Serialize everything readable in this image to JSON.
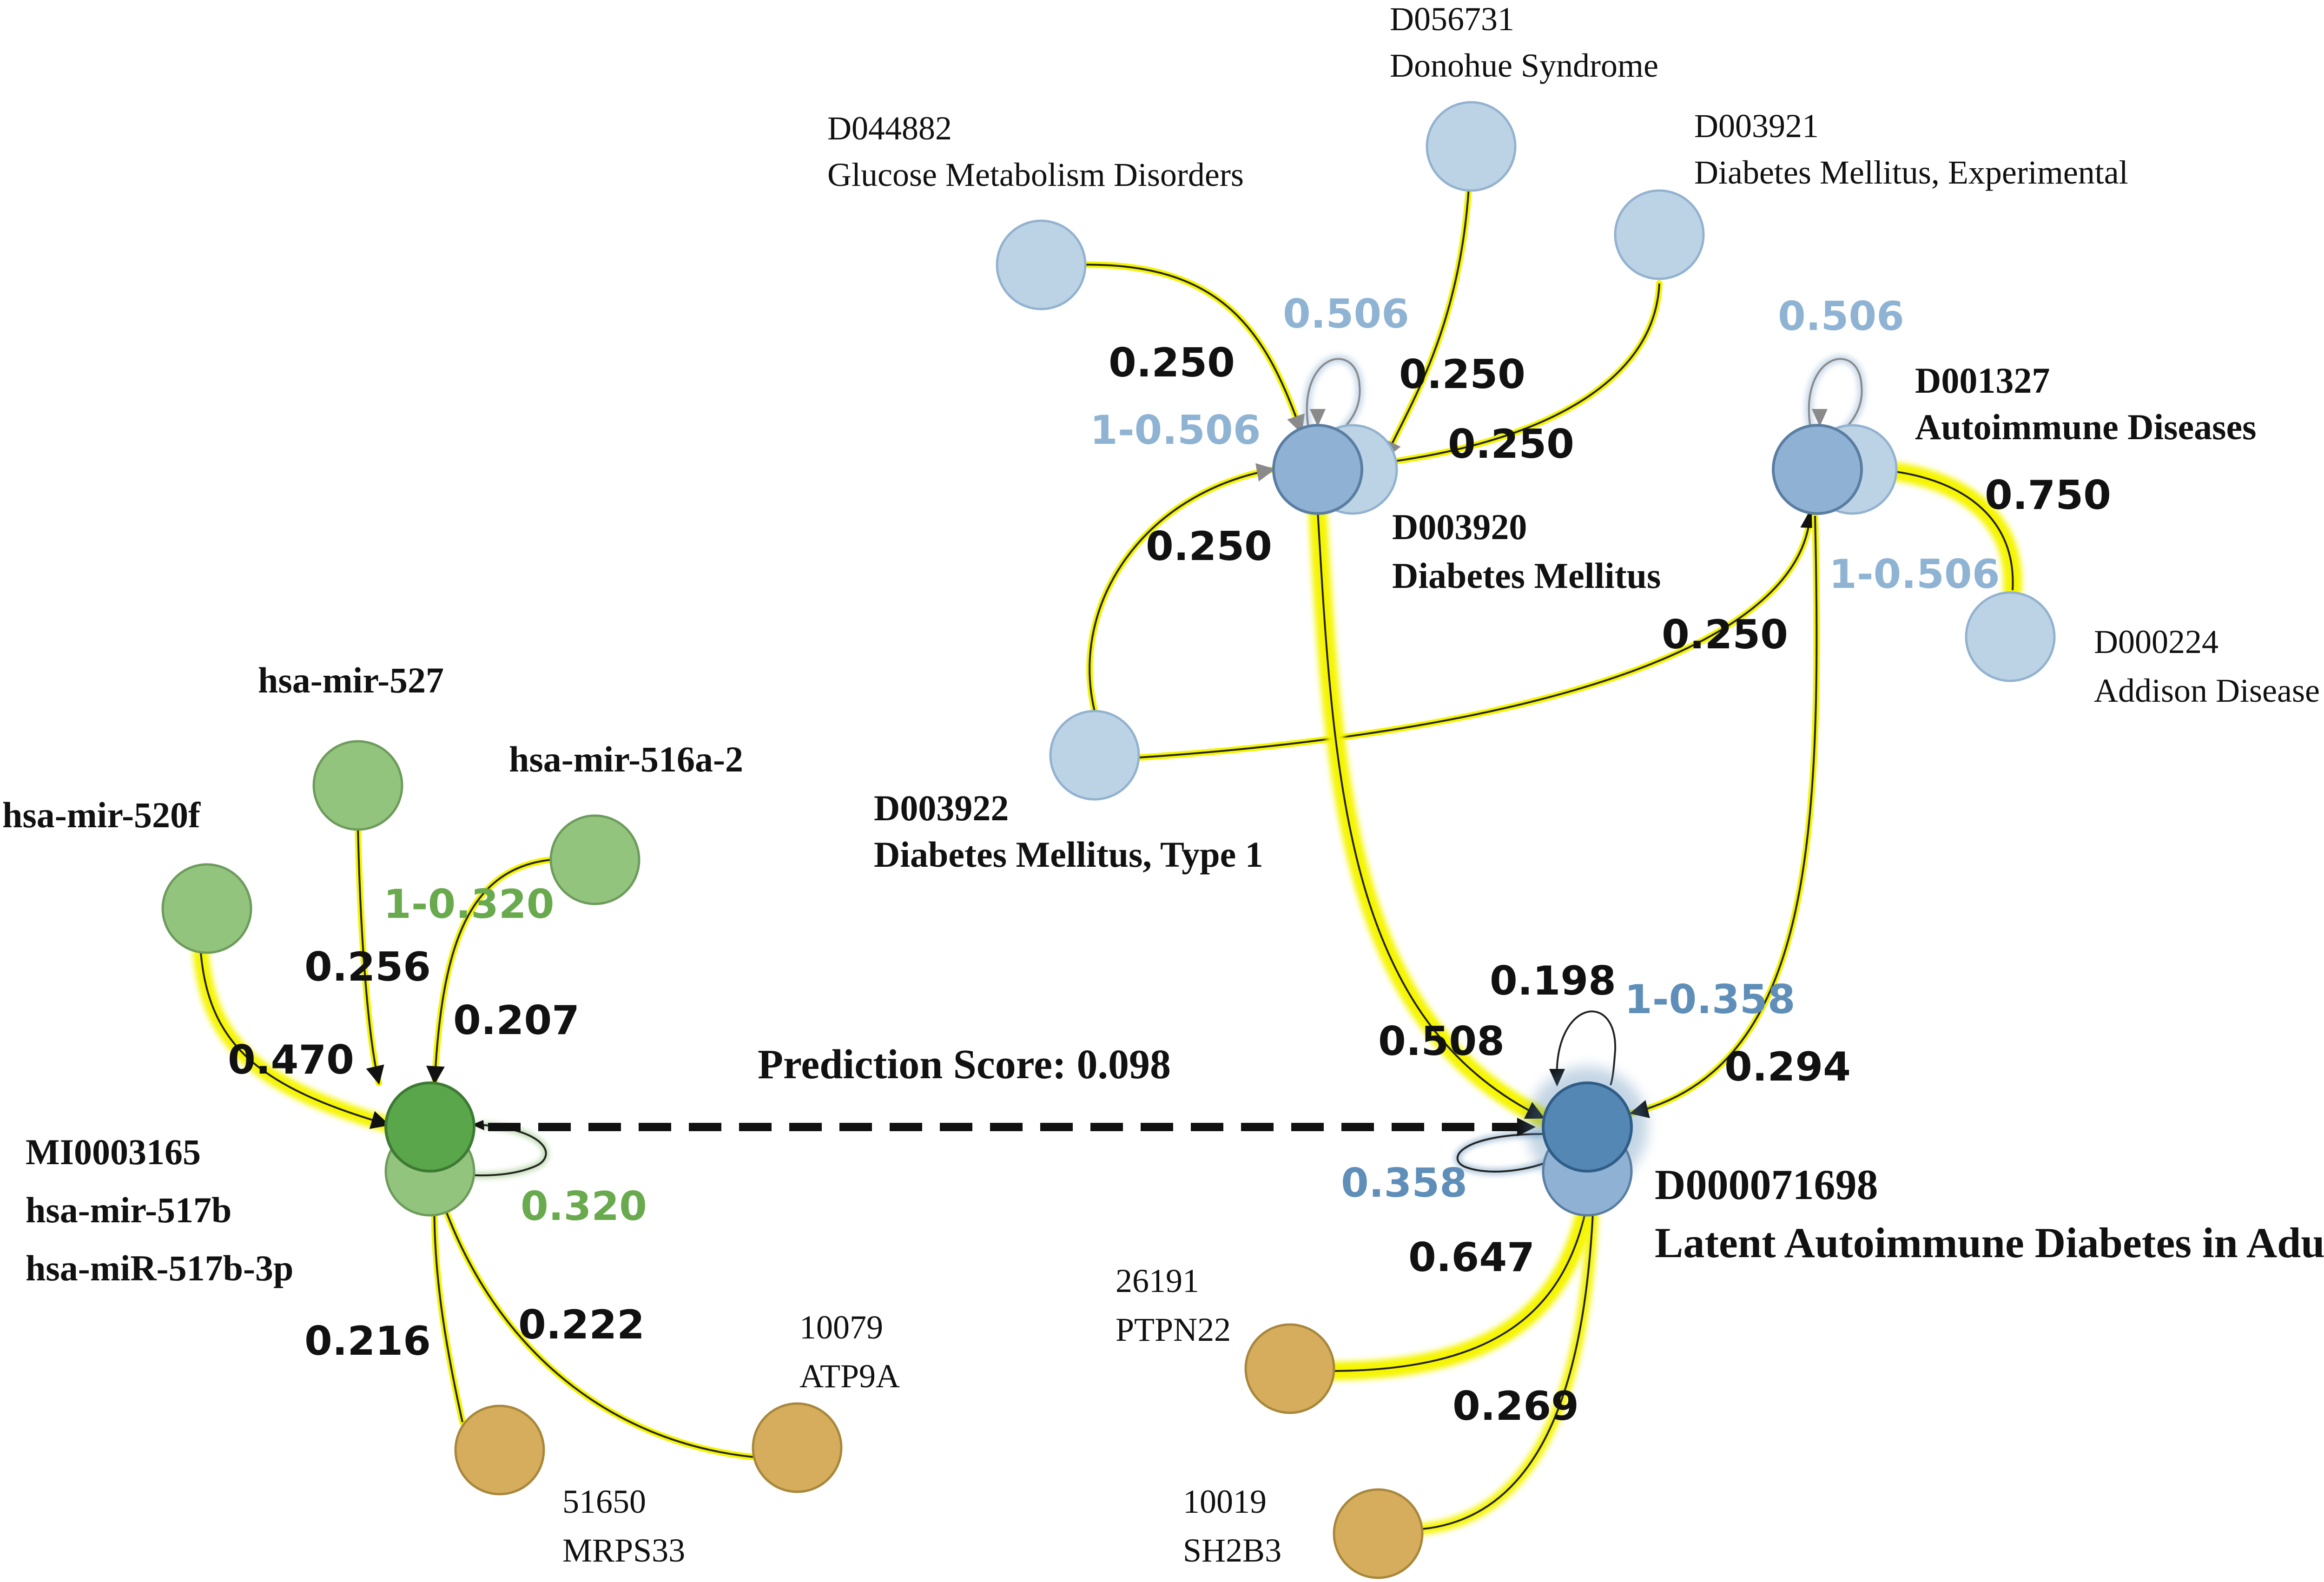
{
  "colors": {
    "mirna_light": "#93c47d",
    "mirna_dark": "#5aa64a",
    "gene": "#d5ad5c",
    "disease_light": "#bcd3e6",
    "disease_mid": "#8fb2d4",
    "disease_dark": "#5587b4",
    "edge_glow": "#f5f500",
    "weight_blue_light": "#8fb3d3",
    "weight_blue_dark": "#5f8fb8",
    "weight_green": "#6aaa4e"
  },
  "nodes": {
    "hsa_mir_527": {
      "label": "hsa-mir-527"
    },
    "hsa_mir_516a_2": {
      "label": "hsa-mir-516a-2"
    },
    "hsa_mir_520f": {
      "label": "hsa-mir-520f"
    },
    "mi0003165": {
      "id": "MI0003165",
      "name1": "hsa-mir-517b",
      "name2": "hsa-miR-517b-3p"
    },
    "gene_10079": {
      "id": "10079",
      "name": "ATP9A"
    },
    "gene_51650": {
      "id": "51650",
      "name": "MRPS33"
    },
    "gene_26191": {
      "id": "26191",
      "name": "PTPN22"
    },
    "gene_10019": {
      "id": "10019",
      "name": "SH2B3"
    },
    "d056731": {
      "id": "D056731",
      "name": "Donohue Syndrome"
    },
    "d044882": {
      "id": "D044882",
      "name": "Glucose Metabolism Disorders"
    },
    "d003921": {
      "id": "D003921",
      "name": "Diabetes Mellitus, Experimental"
    },
    "d003920": {
      "id": "D003920",
      "name": "Diabetes Mellitus"
    },
    "d001327": {
      "id": "D001327",
      "name": "Autoimmune Diseases"
    },
    "d000224": {
      "id": "D000224",
      "name": "Addison Disease"
    },
    "d003922": {
      "id": "D003922",
      "name": "Diabetes Mellitus, Type 1"
    },
    "d000071698": {
      "id": "D000071698",
      "name": "Latent Autoimmune Diabetes in Adults"
    }
  },
  "weights": {
    "w_520f": "0.470",
    "w_527": "0.256",
    "w_516a2": "0.207",
    "w_516a2_residual": "1-0.320",
    "w_mir_self": "0.320",
    "w_51650": "0.216",
    "w_10079": "0.222",
    "w_d044882": "0.250",
    "w_d056731": "0.250",
    "w_d003921": "0.250",
    "w_d003922_to_d003920": "0.250",
    "w_d003920_self": "0.506",
    "w_d003920_residual": "1-0.506",
    "w_d001327_self": "0.506",
    "w_d000224": "0.750",
    "w_d001327_residual": "1-0.506",
    "w_d003922_to_d001327": "0.250",
    "w_d003920_to_lada": "0.508",
    "w_lada_self_in": "0.198",
    "w_lada_residual": "1-0.358",
    "w_d001327_to_lada": "0.294",
    "w_lada_self": "0.358",
    "w_26191": "0.647",
    "w_10019": "0.269"
  },
  "prediction": {
    "label": "Prediction Score: 0.098"
  }
}
